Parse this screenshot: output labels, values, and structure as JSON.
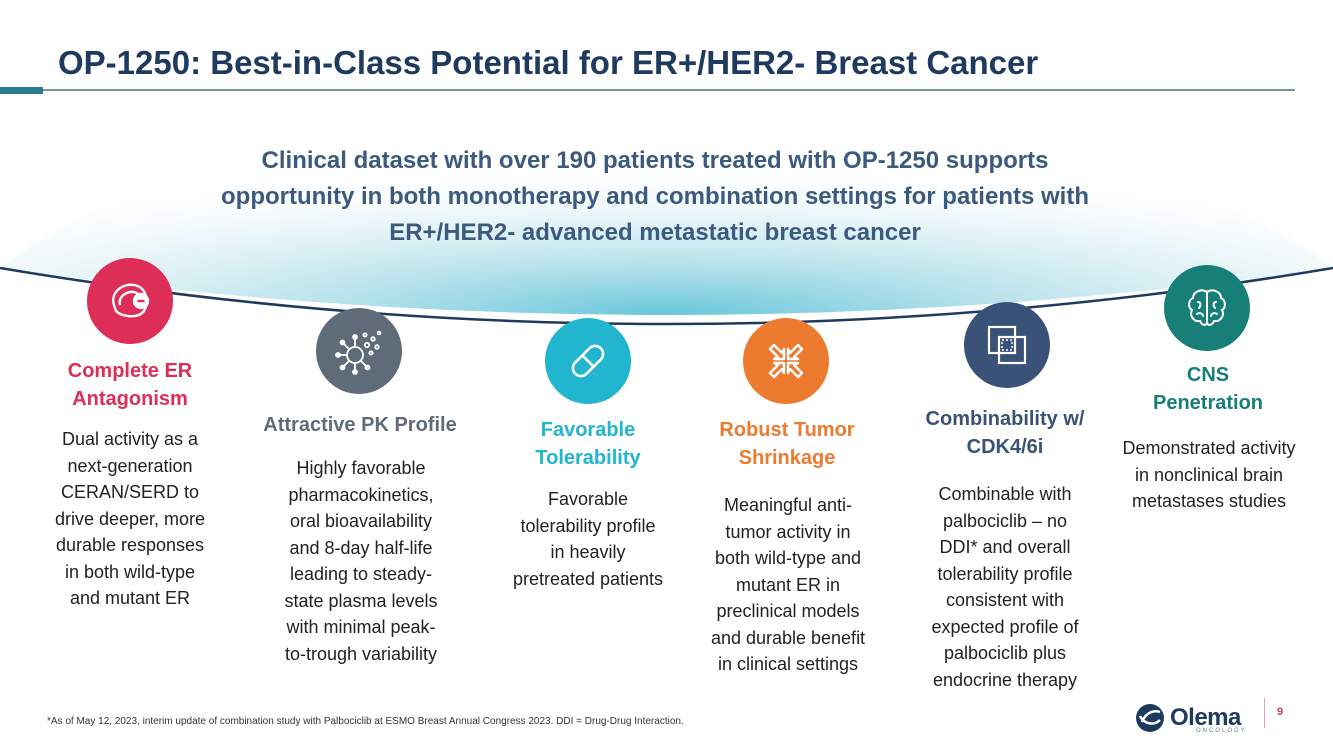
{
  "title": "OP-1250: Best-in-Class Potential for ER+/HER2- Breast Cancer",
  "headline": {
    "line1": "Clinical dataset with over 190 patients treated with OP-1250 supports",
    "line2": "opportunity in both monotherapy and combination settings for patients with",
    "line3": "ER+/HER2- advanced metastatic breast cancer"
  },
  "colors": {
    "crimson": "#dc2e56",
    "slate": "#5f6b78",
    "cyan": "#22b5cf",
    "orange": "#ec7a2f",
    "navy": "#3a5278",
    "teal": "#177e78"
  },
  "features": [
    {
      "icon": "er-antagonist-icon",
      "title_l1": "Complete ER",
      "title_l2": "Antagonism",
      "desc": [
        "Dual activity as a",
        "next-generation",
        "CERAN/SERD to",
        "drive deeper, more",
        "durable responses",
        "in both wild-type",
        "and mutant ER"
      ]
    },
    {
      "icon": "molecule-icon",
      "title_l1": "Attractive PK Profile",
      "desc": [
        "Highly favorable",
        "pharmacokinetics,",
        "oral bioavailability",
        "and 8-day half-life",
        "leading to steady-",
        "state plasma levels",
        "with minimal peak-",
        "to-trough variability"
      ]
    },
    {
      "icon": "pill-icon",
      "title_l1": "Favorable",
      "title_l2": "Tolerability",
      "desc": [
        "Favorable",
        "tolerability profile",
        "in heavily",
        "pretreated patients"
      ]
    },
    {
      "icon": "shrink-arrows-icon",
      "title_l1": "Robust Tumor",
      "title_l2": "Shrinkage",
      "desc": [
        "Meaningful anti-",
        "tumor activity in",
        "both wild-type and",
        "mutant ER in",
        "preclinical models",
        "and durable benefit",
        "in clinical settings"
      ]
    },
    {
      "icon": "combination-squares-icon",
      "title_l1": "Combinability w/",
      "title_l2": "CDK4/6i",
      "desc": [
        "Combinable with",
        "palbociclib – no",
        "DDI* and overall",
        "tolerability profile",
        "consistent with",
        "expected profile of",
        "palbociclib plus",
        "endocrine therapy"
      ]
    },
    {
      "icon": "brain-icon",
      "title_l1": "CNS",
      "title_l2": "Penetration",
      "desc": [
        "Demonstrated activity",
        "in nonclinical brain",
        "metastases studies"
      ]
    }
  ],
  "footnote": "*As of May 12, 2023, interim update of combination study with Palbociclib at ESMO Breast Annual Congress 2023. DDI = Drug-Drug Interaction.",
  "logo": {
    "name": "Olema",
    "sub": "ONCOLOGY"
  },
  "page_number": "9"
}
